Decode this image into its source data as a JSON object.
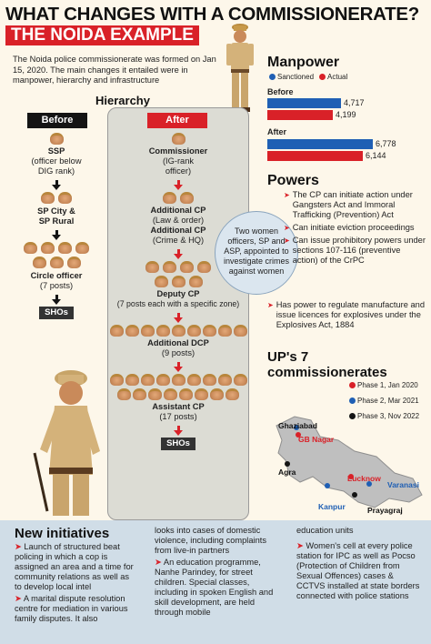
{
  "header": {
    "title": "WHAT CHANGES WITH A COMMISSIONERATE?",
    "subtitle": "THE NOIDA EXAMPLE",
    "intro": "The Noida police commissionerate was formed on Jan 15, 2020. The main changes it entailed were in manpower, hierarchy and infrastructure"
  },
  "hierarchy": {
    "title": "Hierarchy",
    "before_tag": "Before",
    "after_tag": "After",
    "before": {
      "ssp": "SSP",
      "ssp_note": "(officer below DIG rank)",
      "sp_city": "SP City &",
      "sp_rural": "SP Rural",
      "circle": "Circle officer",
      "circle_note": "(7 posts)",
      "shos": "SHOs"
    },
    "after": {
      "commissioner": "Commissioner",
      "commissioner_note": "(IG-rank officer)",
      "addl_cp1": "Additional CP",
      "addl_cp1_note": "(Law & order)",
      "addl_cp2": "Additional CP",
      "addl_cp2_note": "(Crime & HQ)",
      "deputy": "Deputy CP",
      "deputy_note": "(7 posts each with a specific zone)",
      "addl_dcp": "Additional DCP",
      "addl_dcp_note": "(9 posts)",
      "asst_cp": "Assistant CP",
      "asst_cp_note": "(17 posts)",
      "shos": "SHOs"
    },
    "bubble": "Two women officers, SP and ASP, appointed to investigate crimes against women"
  },
  "manpower": {
    "title": "Manpower",
    "legend_sanctioned": "Sanctioned",
    "legend_actual": "Actual",
    "before_label": "Before",
    "after_label": "After",
    "colors": {
      "sanctioned": "#1f5fb4",
      "actual": "#d92128"
    },
    "chart_data": {
      "type": "bar",
      "categories": [
        "Before",
        "After"
      ],
      "series": [
        {
          "name": "Sanctioned",
          "values": [
            4717,
            6778
          ]
        },
        {
          "name": "Actual",
          "values": [
            4199,
            6144
          ]
        }
      ],
      "value_labels": {
        "before_sanctioned": "4,717",
        "before_actual": "4,199",
        "after_sanctioned": "6,778",
        "after_actual": "6,144"
      }
    }
  },
  "powers": {
    "title": "Powers",
    "items": [
      "The CP can initiate action under Gangsters Act and Immoral Trafficking (Prevention) Act",
      "Can initiate eviction proceedings",
      "Can issue prohibitory powers under sections 107-116 (preventive action) of the CrPC",
      "Has power to regulate manufacture and issue licences for explosives under the Explosives Act, 1884"
    ]
  },
  "commissionerates": {
    "title": "UP's 7 commissionerates",
    "legend": [
      {
        "label": "Phase 1, Jan 2020",
        "color": "#d92128"
      },
      {
        "label": "Phase 2, Mar 2021",
        "color": "#1f5fb4"
      },
      {
        "label": "Phase 3, Nov 2022",
        "color": "#141414"
      }
    ],
    "cities": {
      "ghaziabad": "Ghaziabad",
      "gb_nagar": "GB Nagar",
      "agra": "Agra",
      "lucknow": "Lucknow",
      "kanpur": "Kanpur",
      "varanasi": "Varanasi",
      "prayagraj": "Prayagraj"
    }
  },
  "initiatives": {
    "title": "New initiatives",
    "col1": [
      "Launch of structured beat policing in which a cop is assigned an area and a time for community relations as well as to develop local intel",
      "A marital dispute resolution centre for mediation in various family disputes. It also"
    ],
    "col2_cont": "looks into cases of domestic violence, including complaints from live-in partners",
    "col2": [
      "An education programme, Nanhe Parindey, for street children. Special classes, including in spoken English and skill development, are held through mobile"
    ],
    "col3_cont": "education units",
    "col3": [
      "Women's cell at every police station for IPC as well as Pocso (Protection of Children from Sexual Offences) cases & CCTVS installed at state borders connected with police stations"
    ]
  }
}
